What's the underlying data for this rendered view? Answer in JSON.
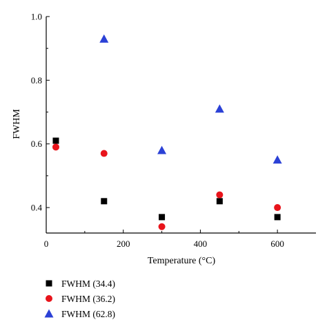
{
  "chart_data": {
    "type": "scatter",
    "title": "",
    "xlabel": "Temperature (°C)",
    "ylabel": "FWHM",
    "xlim": [
      0,
      700
    ],
    "ylim": [
      0.32,
      1.0
    ],
    "xticks": [
      0,
      200,
      400,
      600
    ],
    "yticks": [
      0.4,
      0.6,
      0.8,
      1.0
    ],
    "xtick_labels": [
      "0",
      "200",
      "400",
      "600"
    ],
    "ytick_labels": [
      "0.4",
      "0.6",
      "0.8",
      "1.0"
    ],
    "grid": false,
    "legend_position": "below",
    "series": [
      {
        "name": "FWHM (34.4)",
        "marker": "square",
        "color": "#000000",
        "x": [
          25,
          150,
          300,
          450,
          600
        ],
        "y": [
          0.61,
          0.42,
          0.37,
          0.42,
          0.37
        ]
      },
      {
        "name": "FWHM (36.2)",
        "marker": "circle",
        "color": "#e8141b",
        "x": [
          25,
          150,
          300,
          450,
          600
        ],
        "y": [
          0.59,
          0.57,
          0.34,
          0.44,
          0.4
        ]
      },
      {
        "name": "FWHM (62.8)",
        "marker": "triangle",
        "color": "#2b41d6",
        "x": [
          150,
          300,
          450,
          600
        ],
        "y": [
          0.93,
          0.58,
          0.71,
          0.55
        ]
      }
    ]
  }
}
